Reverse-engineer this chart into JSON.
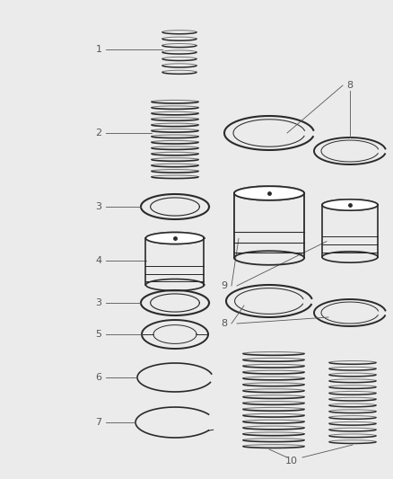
{
  "background_color": "#ebebeb",
  "line_color": "#2a2a2a",
  "label_color": "#555555",
  "fig_width": 4.39,
  "fig_height": 5.33,
  "dpi": 100
}
